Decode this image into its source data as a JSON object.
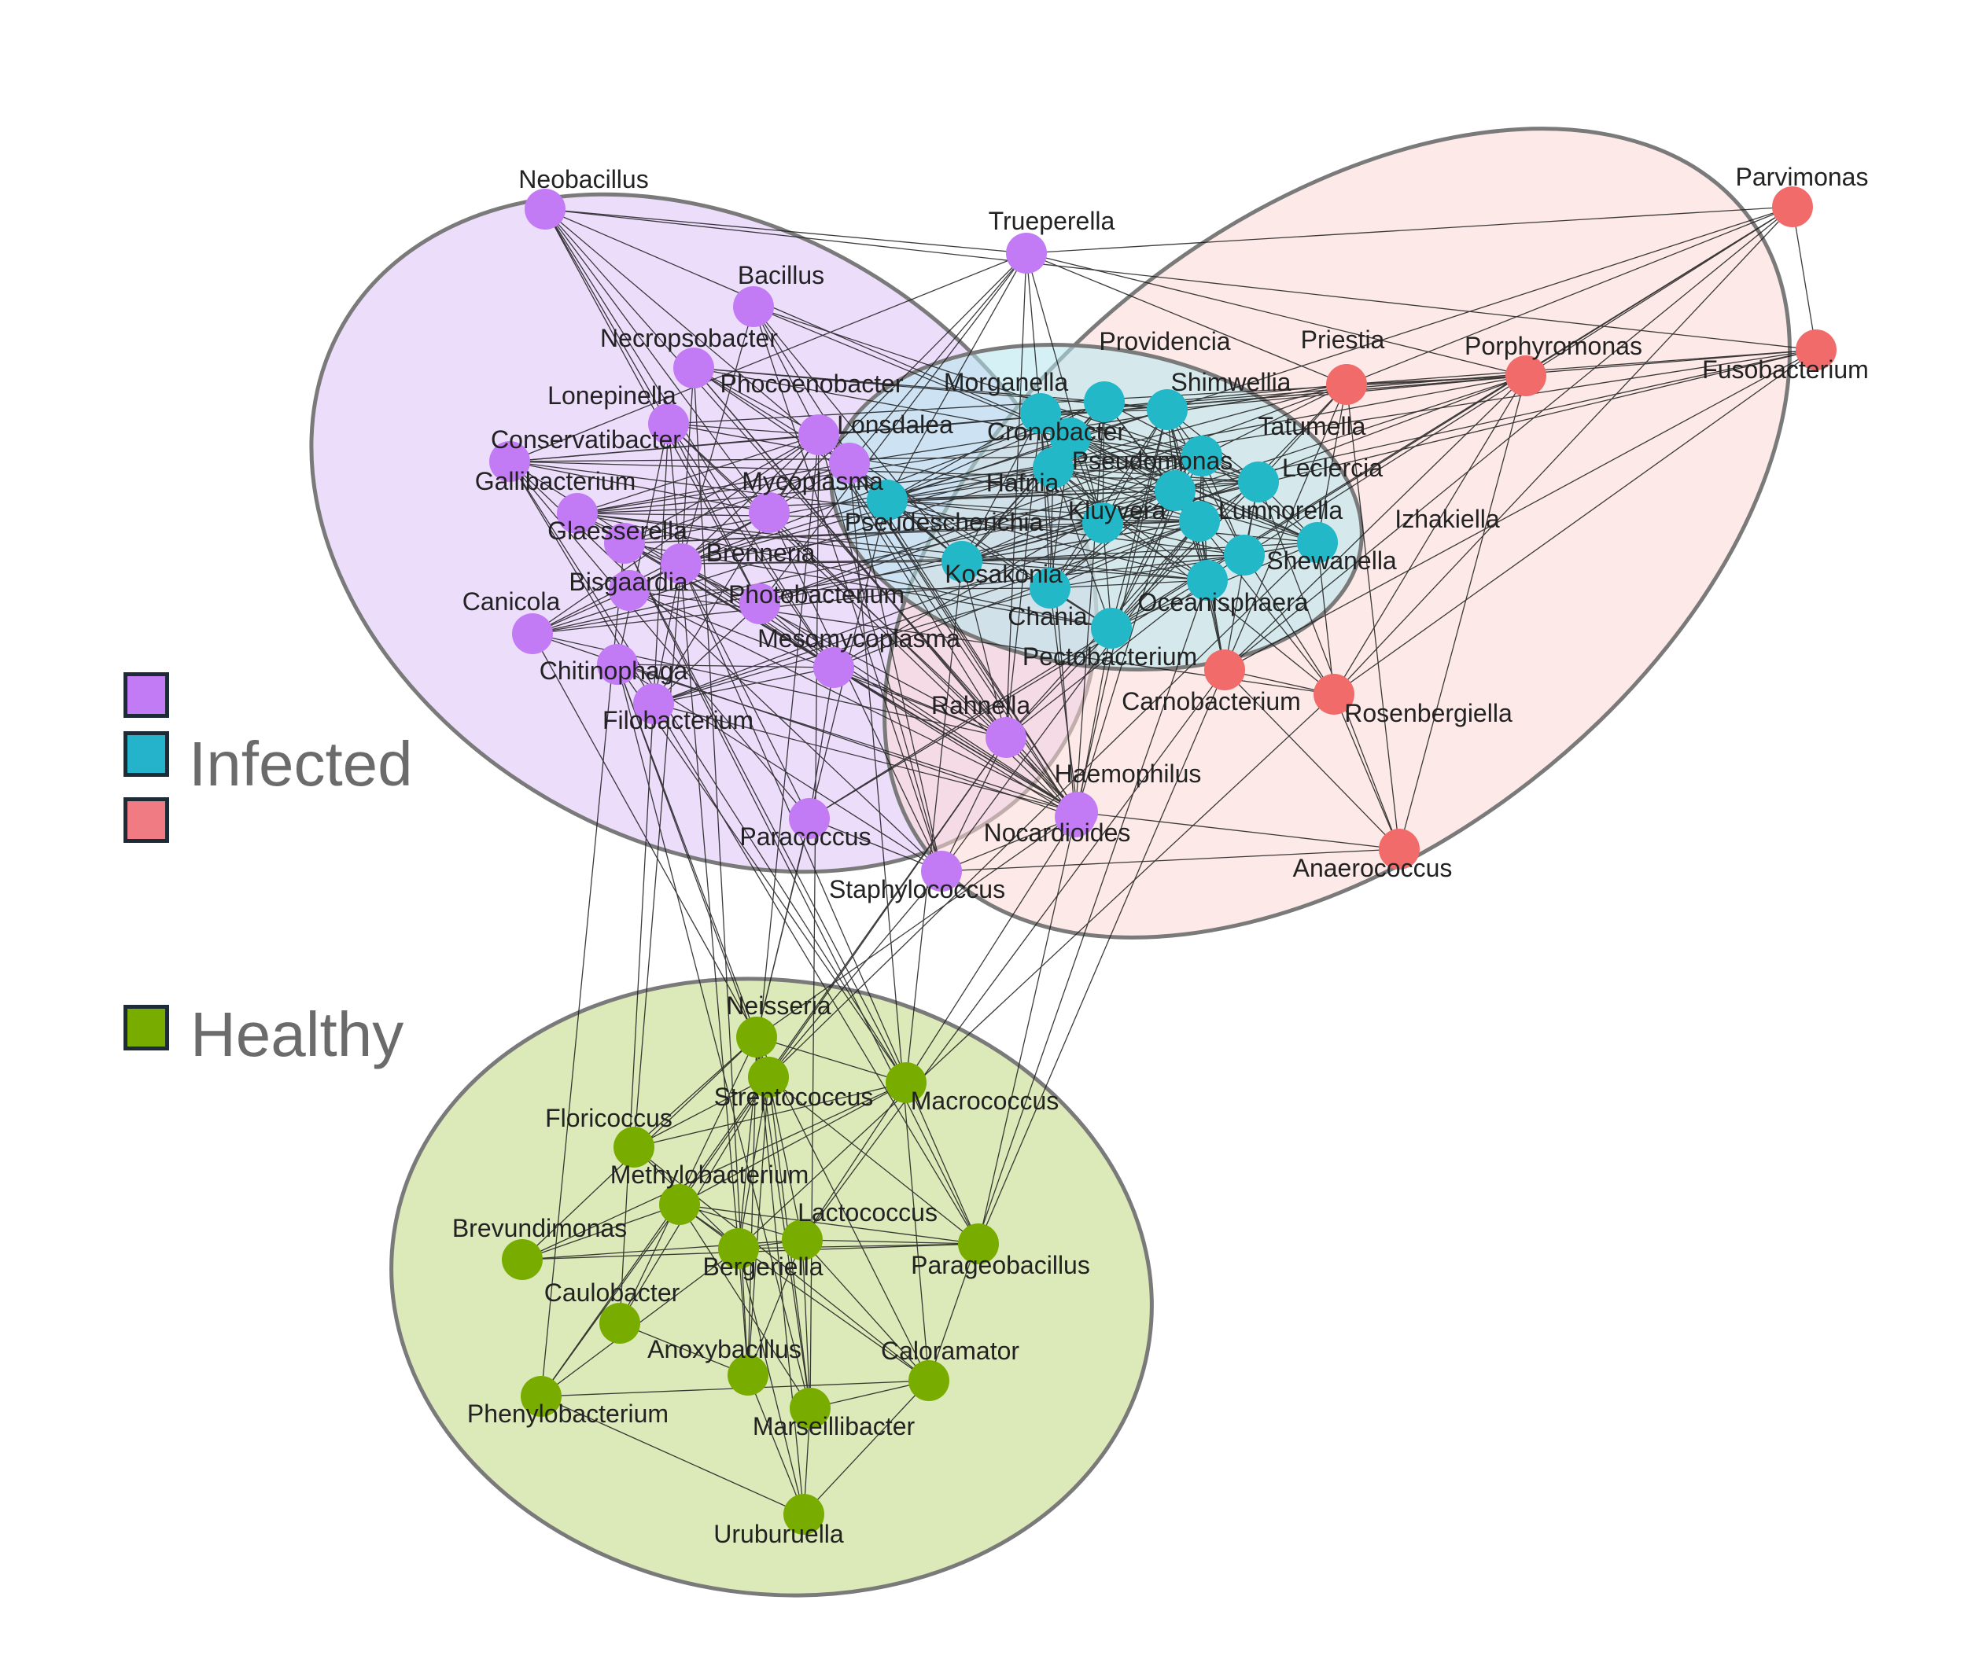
{
  "legend": {
    "infected_label": "Infected",
    "healthy_label": "Healthy",
    "swatches": [
      {
        "group": "purple",
        "color": "#c27af5"
      },
      {
        "group": "teal",
        "color": "#25b3cc"
      },
      {
        "group": "red",
        "color": "#f07b83"
      },
      {
        "group": "green",
        "color": "#78ad00"
      }
    ]
  },
  "colors": {
    "purple_node": "#c27af5",
    "teal_node": "#22b8c8",
    "red_node": "#f26b6b",
    "green_node": "#78ad00",
    "purple_region": "#dcc1f7",
    "teal_region": "#b5e6ec",
    "red_region": "#fcd9d6",
    "green_region": "#d3e3a8",
    "edge": "#1a1a1a",
    "region_border": "#7a7a7a"
  },
  "nodes": {
    "purple": [
      "Neobacillus",
      "Trueperella",
      "Bacillus",
      "Necropsobacter",
      "Phocoenobacter",
      "Lonepinella",
      "Lonsdalea",
      "Conservatibacter",
      "Gallibacterium",
      "Mycoplasma",
      "Glaesserella",
      "Brenneria",
      "Bisgaardia",
      "Photobacterium",
      "Canicola",
      "Mesomycoplasma",
      "Chitinophaga",
      "Filobacterium",
      "Rahnella",
      "Haemophilus",
      "Paracoccus",
      "Nocardioides",
      "Staphylococcus"
    ],
    "teal": [
      "Providencia",
      "Shimwellia",
      "Morganella",
      "Cronobacter",
      "Tatumella",
      "Hafnia",
      "Leclercia",
      "Pseudomonas",
      "Pseudescherichia",
      "Kluyvera",
      "Lumnorella",
      "Izhakiella",
      "Kosakonia",
      "Shewanella",
      "Oceanisphaera",
      "Chania",
      "Pectobacterium"
    ],
    "red": [
      "Parvimonas",
      "Priestia",
      "Porphyromonas",
      "Fusobacterium",
      "Carnobacterium",
      "Rosenbergiella",
      "Anaerococcus"
    ],
    "green": [
      "Neisseria",
      "Streptococcus",
      "Macrococcus",
      "Floricoccus",
      "Methylobacterium",
      "Brevundimonas",
      "Lactococcus",
      "Bergeriella",
      "Parageobacillus",
      "Caulobacter",
      "Anoxybacillus",
      "Caloramator",
      "Phenylobacterium",
      "Marseillibacter",
      "Uruburuella"
    ]
  }
}
